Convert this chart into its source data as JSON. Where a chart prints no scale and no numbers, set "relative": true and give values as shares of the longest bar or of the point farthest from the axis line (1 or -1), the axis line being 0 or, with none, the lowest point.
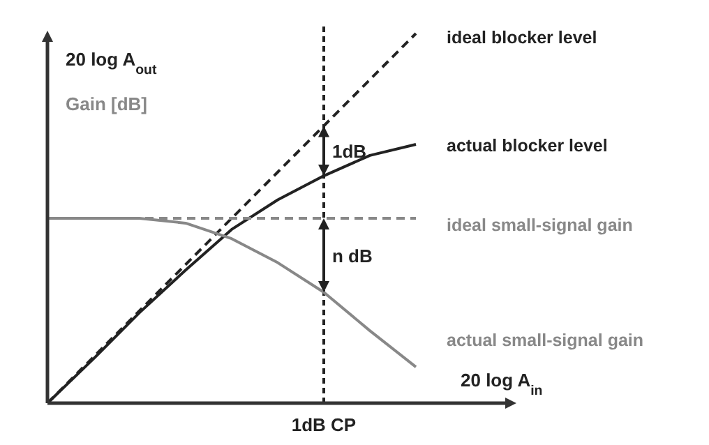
{
  "chart_data": {
    "type": "line",
    "relative": true,
    "categories": [
      null,
      null,
      null,
      null,
      null,
      null,
      null,
      null,
      null
    ],
    "xlabel": "20 log A$_{in}$",
    "ylabel": "20 log A$_{out}$",
    "y2label": "Gain [dB]",
    "series": [
      {
        "name": "ideal blocker level",
        "color": "#222222",
        "line_style": "dashed",
        "values": [
          0,
          0.125,
          0.25,
          0.375,
          0.5,
          0.625,
          0.75,
          0.875,
          1.0
        ]
      },
      {
        "name": "actual blocker level",
        "color": "#222222",
        "line_style": "solid",
        "values": [
          0,
          0.12,
          0.245,
          0.36,
          0.47,
          0.55,
          0.615,
          0.67,
          0.7
        ]
      },
      {
        "name": "ideal small-signal gain",
        "color": "#888888",
        "line_style": "dashed",
        "values": [
          0.5,
          0.5,
          0.5,
          0.5,
          0.5,
          0.5,
          0.5,
          0.5,
          0.5
        ]
      },
      {
        "name": "actual small-signal gain",
        "color": "#888888",
        "line_style": "solid",
        "values": [
          0.5,
          0.5,
          0.5,
          0.487,
          0.445,
          0.38,
          0.3,
          0.196,
          0.098
        ]
      }
    ],
    "annotations": [
      "1dB",
      "n dB",
      "1dB CP"
    ]
  }
}
